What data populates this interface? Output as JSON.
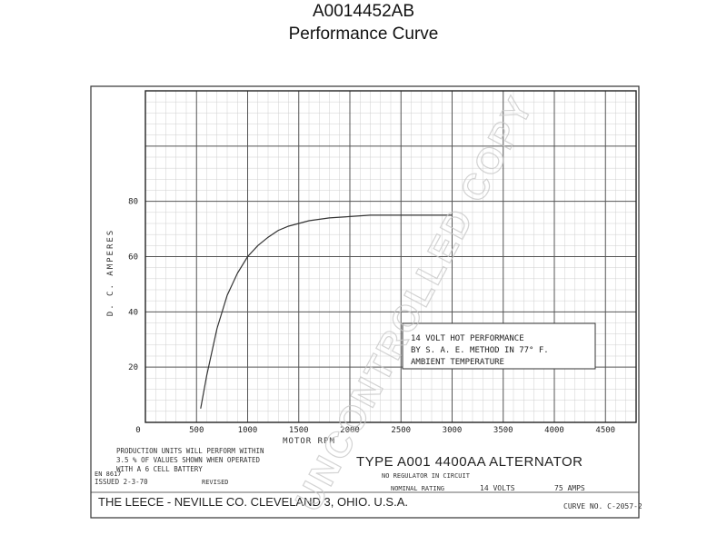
{
  "header": {
    "title": "A0014452AB",
    "subtitle": "Performance Curve"
  },
  "chart_data": {
    "type": "line",
    "xlabel": "MOTOR RPM",
    "ylabel": "D. C. AMPERES",
    "xlim": [
      0,
      4800
    ],
    "ylim": [
      0,
      120
    ],
    "x_ticks": [
      "0",
      "500",
      "1000",
      "1500",
      "2000",
      "2500",
      "3000",
      "3500",
      "4000",
      "4500"
    ],
    "x_tick_values": [
      0,
      500,
      1000,
      1500,
      2000,
      2500,
      3000,
      3500,
      4000,
      4500
    ],
    "y_ticks": [
      "20",
      "40",
      "60",
      "80"
    ],
    "y_tick_values": [
      20,
      40,
      60,
      80
    ],
    "grid": true,
    "series": [
      {
        "x": [
          540,
          600,
          700,
          800,
          900,
          1000,
          1100,
          1200,
          1300,
          1400,
          1500,
          1600,
          1800,
          2000,
          2200,
          2400,
          2600,
          3000
        ],
        "y": [
          5,
          17,
          34,
          46,
          54,
          60,
          64,
          67,
          69.5,
          71,
          72,
          73,
          74,
          74.5,
          75,
          75,
          75,
          75
        ]
      }
    ],
    "annotation": [
      "14  VOLT  HOT  PERFORMANCE",
      "BY  S. A. E.  METHOD  IN  77° F.",
      "AMBIENT  TEMPERATURE"
    ]
  },
  "footer": {
    "production_note": [
      "PRODUCTION  UNITS  WILL  PERFORM  WITHIN",
      "3.5 %  OF  VALUES  SHOWN  WHEN  OPERATED",
      "WITH  A  6  CELL BATTERY"
    ],
    "en_number": "EN 8617",
    "issued": "ISSUED 2-3-70",
    "revised": "REVISED",
    "type_line": "TYPE  A001 4400AA  ALTERNATOR",
    "regulator_note": "NO REGULATOR IN CIRCUIT",
    "nominal_label": "NOMINAL RATING",
    "nominal_volts": "14  VOLTS",
    "nominal_amps": "75  AMPS",
    "company": "THE LEECE - NEVILLE CO. CLEVELAND 3, OHIO. U.S.A.",
    "curve_no": "CURVE NO.  C-2057-2"
  },
  "watermark": "UNCONTROLLED COPY"
}
